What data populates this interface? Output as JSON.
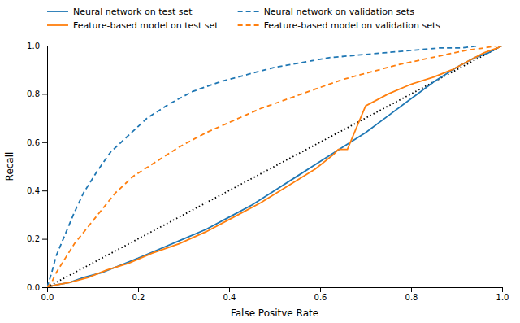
{
  "chart_data": {
    "type": "line",
    "xlabel": "False Positve Rate",
    "ylabel": "Recall",
    "xlim": [
      0.0,
      1.0
    ],
    "ylim": [
      0.0,
      1.0
    ],
    "xticks": [
      {
        "value": 0.0,
        "label": "0.0"
      },
      0.2,
      0.4,
      0.6,
      0.8,
      {
        "value": 1.0,
        "label": "1.0"
      }
    ],
    "yticks": [
      {
        "value": 0.0,
        "label": "0.0"
      },
      0.2,
      0.4,
      0.6,
      0.8,
      {
        "value": 1.0,
        "label": "1.0"
      }
    ],
    "grid": false,
    "legend": "top-left",
    "diagonal": {
      "x": [
        0,
        1
      ],
      "values": [
        0,
        1
      ],
      "color": "black",
      "line_style": "dotted"
    },
    "series": [
      {
        "name": "Neural network on test set",
        "color": "#1f77b4",
        "line_style": "solid",
        "x": [
          0.0,
          0.02,
          0.05,
          0.08,
          0.12,
          0.16,
          0.2,
          0.25,
          0.3,
          0.35,
          0.4,
          0.45,
          0.5,
          0.55,
          0.6,
          0.65,
          0.7,
          0.75,
          0.8,
          0.85,
          0.9,
          0.94,
          0.97,
          0.99,
          1.0
        ],
        "values": [
          0.0,
          0.01,
          0.02,
          0.04,
          0.06,
          0.09,
          0.12,
          0.16,
          0.2,
          0.24,
          0.29,
          0.34,
          0.4,
          0.46,
          0.52,
          0.58,
          0.64,
          0.71,
          0.78,
          0.85,
          0.91,
          0.95,
          0.97,
          0.99,
          1.0
        ]
      },
      {
        "name": "Neural network on validation sets",
        "color": "#1f77b4",
        "line_style": "dashed",
        "x": [
          0.0,
          0.01,
          0.02,
          0.04,
          0.06,
          0.08,
          0.11,
          0.14,
          0.18,
          0.22,
          0.27,
          0.32,
          0.38,
          0.44,
          0.5,
          0.56,
          0.62,
          0.68,
          0.74,
          0.8,
          0.86,
          0.91,
          0.95,
          0.98,
          1.0
        ],
        "values": [
          0.0,
          0.06,
          0.13,
          0.22,
          0.31,
          0.39,
          0.48,
          0.56,
          0.63,
          0.7,
          0.76,
          0.81,
          0.85,
          0.88,
          0.91,
          0.93,
          0.95,
          0.96,
          0.97,
          0.98,
          0.99,
          0.99,
          1.0,
          1.0,
          1.0
        ]
      },
      {
        "name": "Feature-based model on test set",
        "color": "#ff7f0e",
        "line_style": "solid",
        "x": [
          0.0,
          0.02,
          0.05,
          0.09,
          0.13,
          0.18,
          0.23,
          0.29,
          0.35,
          0.41,
          0.47,
          0.53,
          0.59,
          0.63,
          0.64,
          0.66,
          0.7,
          0.75,
          0.8,
          0.85,
          0.89,
          0.93,
          0.96,
          0.99,
          1.0
        ],
        "values": [
          0.0,
          0.01,
          0.02,
          0.04,
          0.07,
          0.1,
          0.14,
          0.18,
          0.23,
          0.29,
          0.35,
          0.42,
          0.49,
          0.55,
          0.57,
          0.57,
          0.75,
          0.8,
          0.84,
          0.87,
          0.9,
          0.94,
          0.97,
          0.99,
          1.0
        ]
      },
      {
        "name": "Feature-based model on validation sets",
        "color": "#ff7f0e",
        "line_style": "dashed",
        "x": [
          0.0,
          0.01,
          0.02,
          0.04,
          0.06,
          0.09,
          0.12,
          0.15,
          0.19,
          0.24,
          0.29,
          0.35,
          0.41,
          0.47,
          0.53,
          0.59,
          0.65,
          0.71,
          0.77,
          0.82,
          0.87,
          0.92,
          0.96,
          0.99,
          1.0
        ],
        "values": [
          0.0,
          0.02,
          0.06,
          0.12,
          0.18,
          0.25,
          0.32,
          0.39,
          0.46,
          0.52,
          0.58,
          0.64,
          0.69,
          0.74,
          0.78,
          0.82,
          0.86,
          0.89,
          0.92,
          0.94,
          0.96,
          0.98,
          0.99,
          1.0,
          1.0
        ]
      }
    ]
  }
}
